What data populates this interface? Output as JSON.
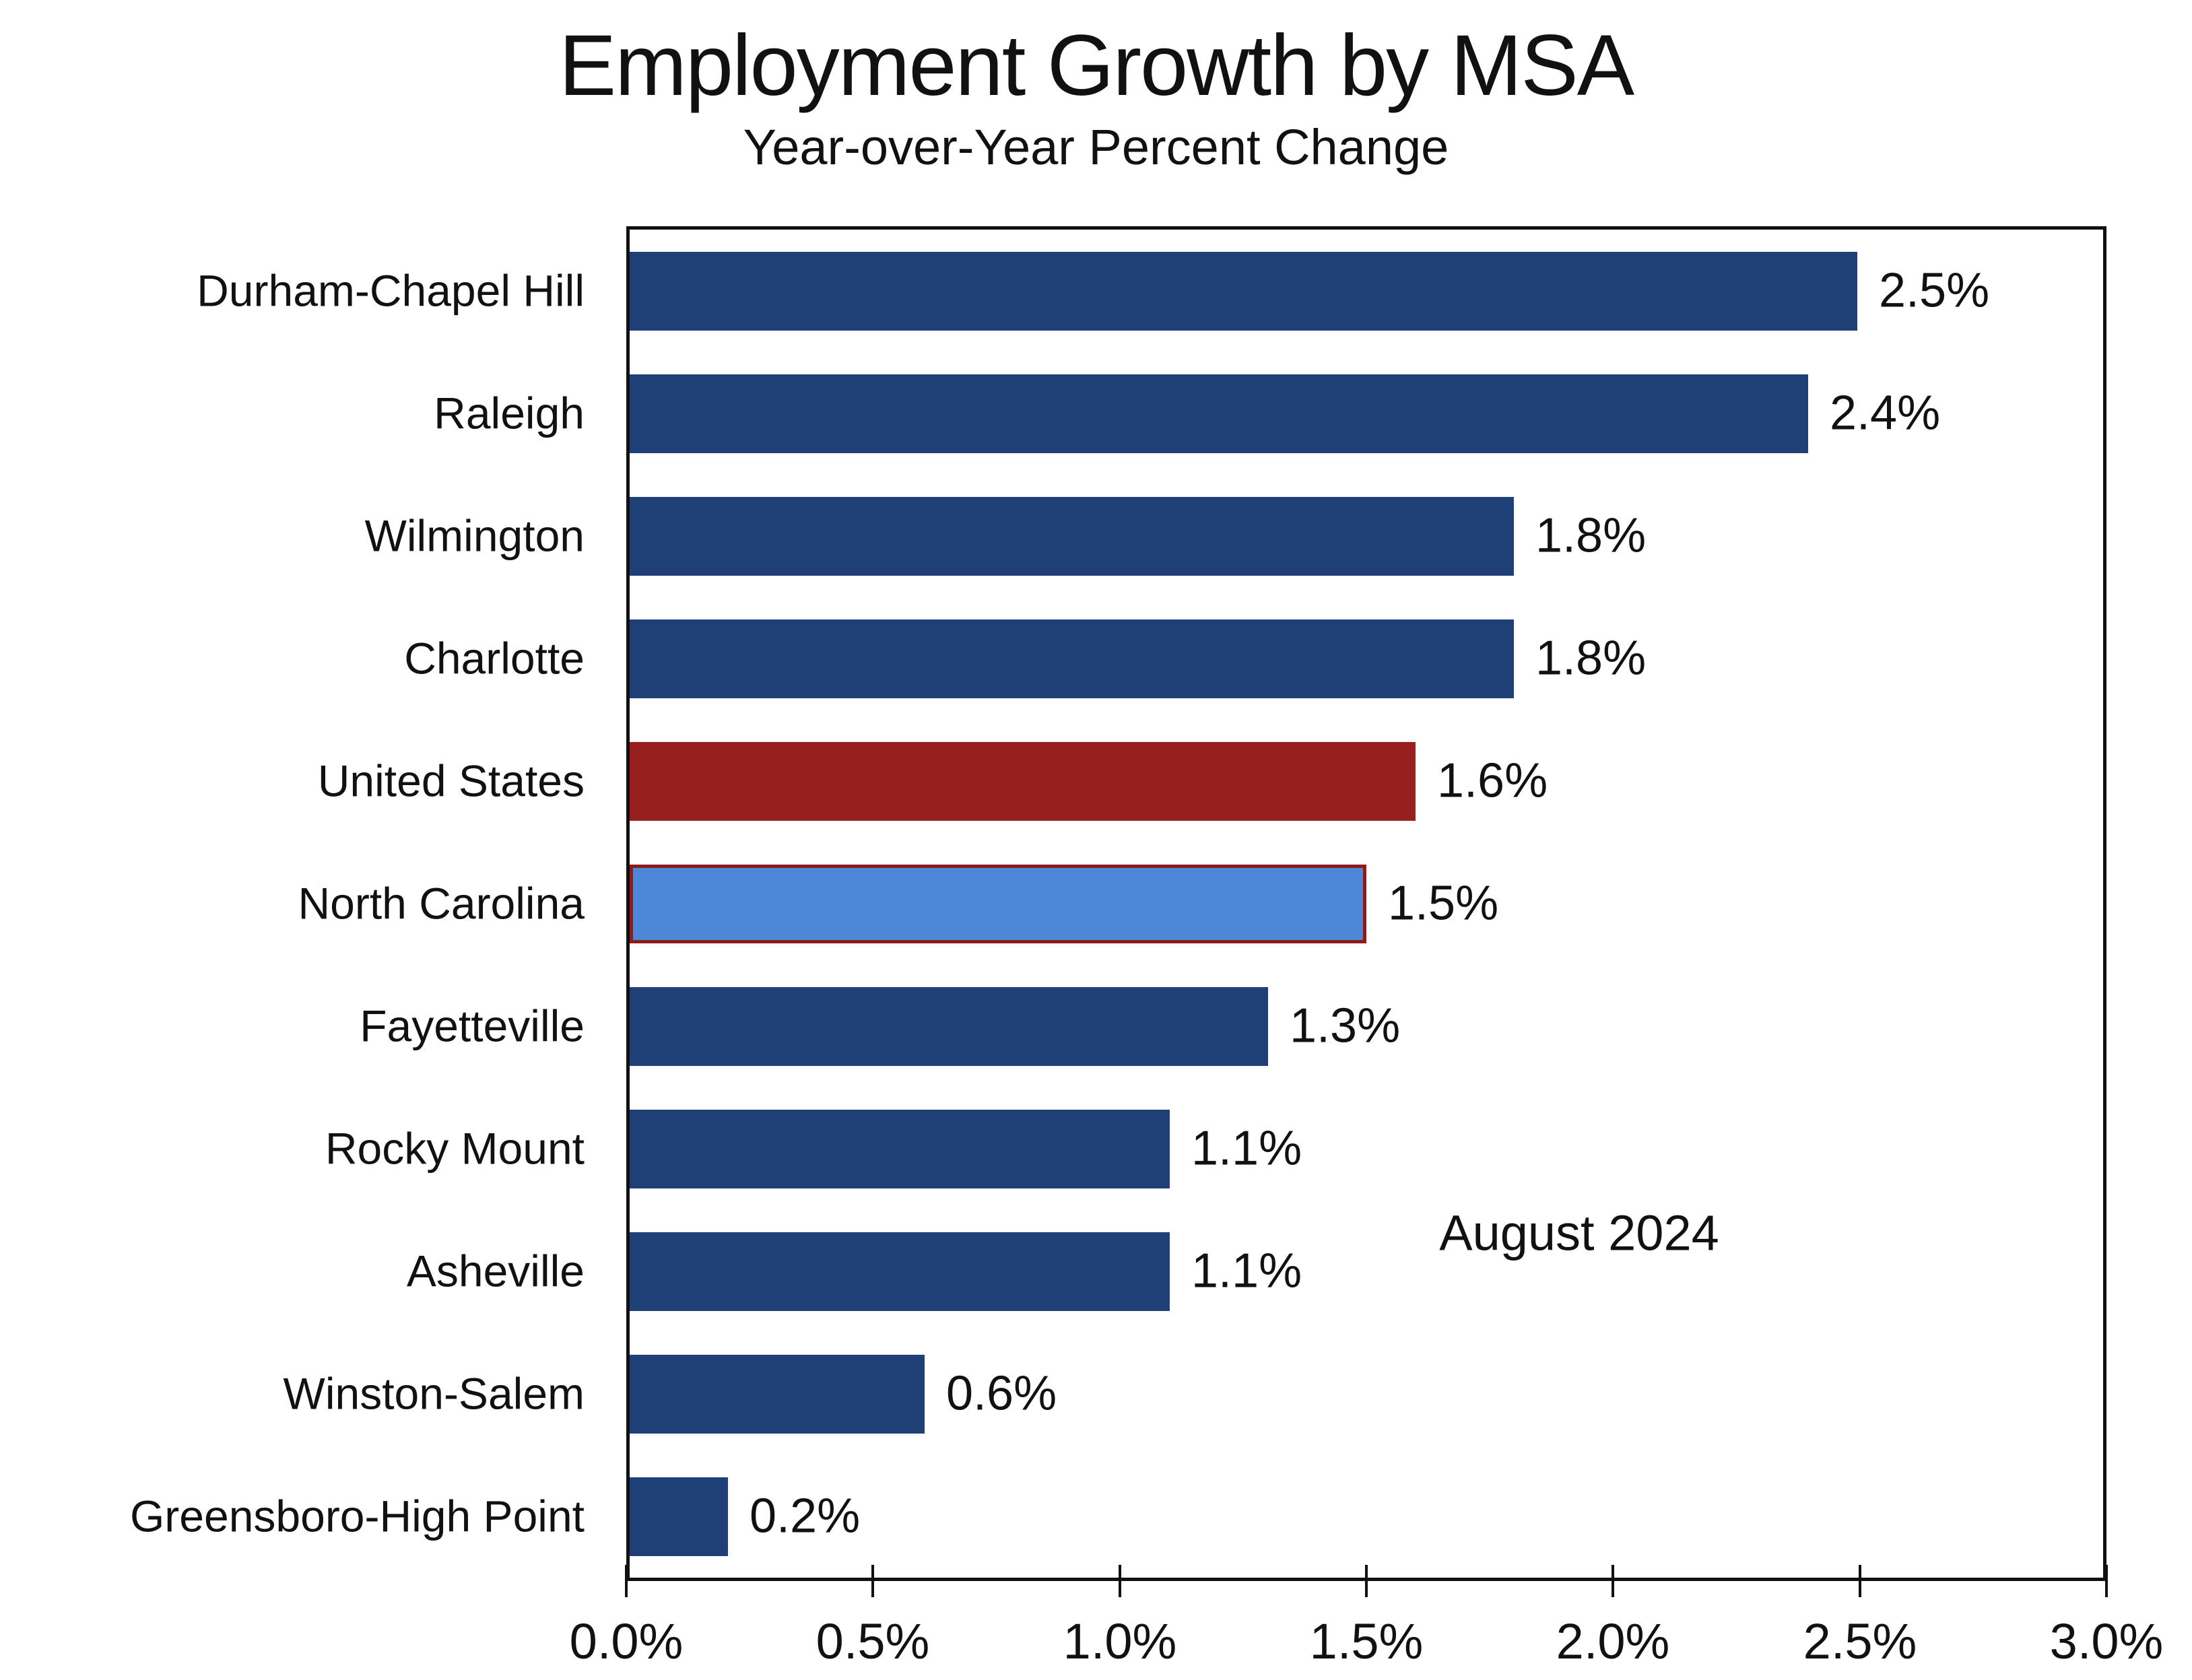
{
  "header": {
    "title": "Employment Growth by MSA",
    "subtitle": "Year-over-Year Percent Change"
  },
  "annotation": "August 2024",
  "colors": {
    "bar_default": "#1f4077",
    "bar_united_states": "#97201e",
    "bar_north_carolina_fill": "#4e86d8",
    "bar_north_carolina_border": "#8e1b19",
    "axis": "#111111",
    "text": "#111111",
    "background": "#ffffff"
  },
  "chart_data": {
    "type": "bar",
    "orientation": "horizontal",
    "title": "Employment Growth by MSA",
    "subtitle": "Year-over-Year Percent Change",
    "annotation": "August 2024",
    "categories": [
      "Durham-Chapel Hill",
      "Raleigh",
      "Wilmington",
      "Charlotte",
      "United States",
      "North Carolina",
      "Fayetteville",
      "Rocky Mount",
      "Asheville",
      "Winston-Salem",
      "Greensboro-High Point"
    ],
    "values": [
      2.5,
      2.4,
      1.8,
      1.8,
      1.6,
      1.5,
      1.3,
      1.1,
      1.1,
      0.6,
      0.2
    ],
    "value_labels": [
      "2.5%",
      "2.4%",
      "1.8%",
      "1.8%",
      "1.6%",
      "1.5%",
      "1.3%",
      "1.1%",
      "1.1%",
      "0.6%",
      "0.2%"
    ],
    "bar_colors": [
      "#1f4077",
      "#1f4077",
      "#1f4077",
      "#1f4077",
      "#97201e",
      "#4e86d8",
      "#1f4077",
      "#1f4077",
      "#1f4077",
      "#1f4077",
      "#1f4077"
    ],
    "bar_borders": [
      null,
      null,
      null,
      null,
      null,
      "#8e1b19",
      null,
      null,
      null,
      null,
      null
    ],
    "xlabel": "",
    "ylabel": "",
    "xlim": [
      0,
      3.0
    ],
    "xticks": [
      {
        "value": 0.0,
        "label": "0.0%"
      },
      {
        "value": 0.5,
        "label": "0.5%"
      },
      {
        "value": 1.0,
        "label": "1.0%"
      },
      {
        "value": 1.5,
        "label": "1.5%"
      },
      {
        "value": 2.0,
        "label": "2.0%"
      },
      {
        "value": 2.5,
        "label": "2.5%"
      },
      {
        "value": 3.0,
        "label": "3.0%"
      }
    ],
    "grid": false,
    "legend": false
  }
}
